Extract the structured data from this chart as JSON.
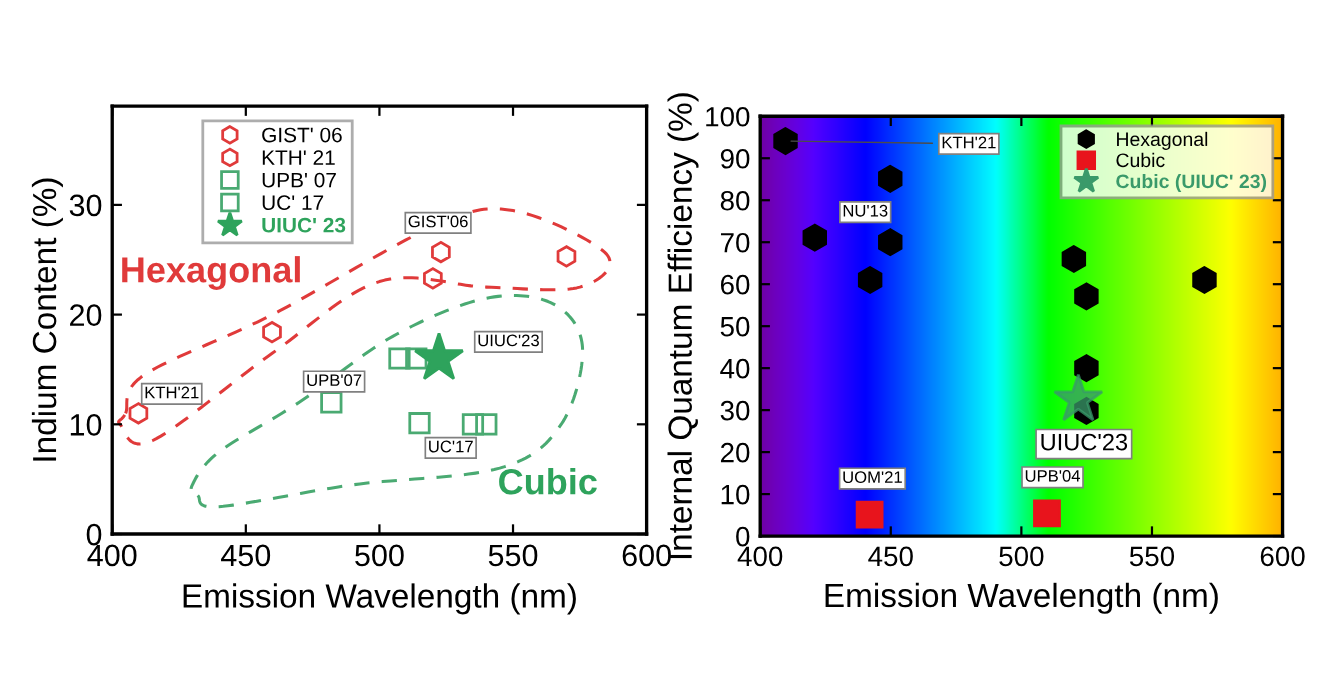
{
  "chart_data": [
    {
      "type": "scatter",
      "xlabel": "Emission Wavelength (nm)",
      "ylabel": "Indium Content (%)",
      "xlim": [
        400,
        600
      ],
      "xticks": [
        400,
        450,
        500,
        550,
        600
      ],
      "ylim": [
        0,
        39
      ],
      "yticks": [
        0,
        10,
        20,
        30
      ],
      "grid": false,
      "legend": "top left",
      "series": [
        {
          "name": "GIST' 06",
          "color": "#e03a3a",
          "x": [
            523
          ],
          "values": [
            25.7
          ]
        },
        {
          "name": "KTH' 21",
          "color": "#e03a3a",
          "x": [
            409.8,
            459.8,
            520,
            570
          ],
          "values": [
            11.0,
            18.4,
            23.3,
            25.3
          ]
        },
        {
          "name": "UPB' 07",
          "color": "#4aaa72",
          "marker": "square",
          "x": [
            482,
            507.5,
            513.8
          ],
          "values": [
            12.0,
            16.0,
            16.0
          ]
        },
        {
          "name": "UC' 17",
          "color": "#4aaa72",
          "marker": "square",
          "x": [
            515,
            535,
            540
          ],
          "values": [
            10.1,
            10.0,
            10.0
          ]
        },
        {
          "name": "UIUC' 23",
          "color": "#2ea35c",
          "marker": "star",
          "x": [
            522.3
          ],
          "values": [
            16.0
          ]
        }
      ],
      "annotations": [
        {
          "text": "GIST'06",
          "x": 523,
          "y": 25.7
        },
        {
          "text": "KTH'21",
          "x": 409.8,
          "y": 11.0
        },
        {
          "text": "UPB'07",
          "x": 482,
          "y": 12.0
        },
        {
          "text": "UC'17",
          "x": 535,
          "y": 10.0
        },
        {
          "text": "UIUC'23",
          "x": 522.3,
          "y": 16.0
        },
        "Hexagonal",
        "Cubic"
      ]
    },
    {
      "type": "scatter",
      "xlabel": "Emission Wavelength (nm)",
      "ylabel": "Internal Quantum Efficiency (%)",
      "xlim": [
        400,
        600
      ],
      "xticks": [
        400,
        450,
        500,
        550,
        600
      ],
      "ylim": [
        0,
        100
      ],
      "yticks": [
        0,
        10,
        20,
        30,
        40,
        50,
        60,
        70,
        80,
        90,
        100
      ],
      "grid": false,
      "legend": "top right",
      "series": [
        {
          "name": "Hexagonal",
          "color": "#000000",
          "x": [
            409.7,
            449.8,
            420.9,
            449.8,
            442.1,
            520.1,
            524.9,
            570.1,
            524.9,
            524.9
          ],
          "values": [
            94.1,
            85.1,
            71.1,
            70.0,
            61.0,
            66.0,
            57.1,
            61.0,
            40.0,
            29.8
          ]
        },
        {
          "name": "Cubic",
          "color": "#e8141c",
          "marker": "square",
          "x": [
            441.9,
            509.8
          ],
          "values": [
            5.1,
            5.4
          ]
        },
        {
          "name": "Cubic (UIUC' 23)",
          "color": "#3a9a6a",
          "marker": "star",
          "x": [
            521.8
          ],
          "values": [
            32.5
          ]
        }
      ],
      "annotations": [
        {
          "text": "KTH'21",
          "x": 409.7,
          "y": 94.1
        },
        {
          "text": "NU'13",
          "x": 449.8,
          "y": 85.1
        },
        {
          "text": "UIUC'23",
          "x": 521.8,
          "y": 32.5
        },
        {
          "text": "UOM'21",
          "x": 441.9,
          "y": 5.1
        },
        {
          "text": "UPB'04",
          "x": 509.8,
          "y": 5.4
        }
      ]
    }
  ]
}
